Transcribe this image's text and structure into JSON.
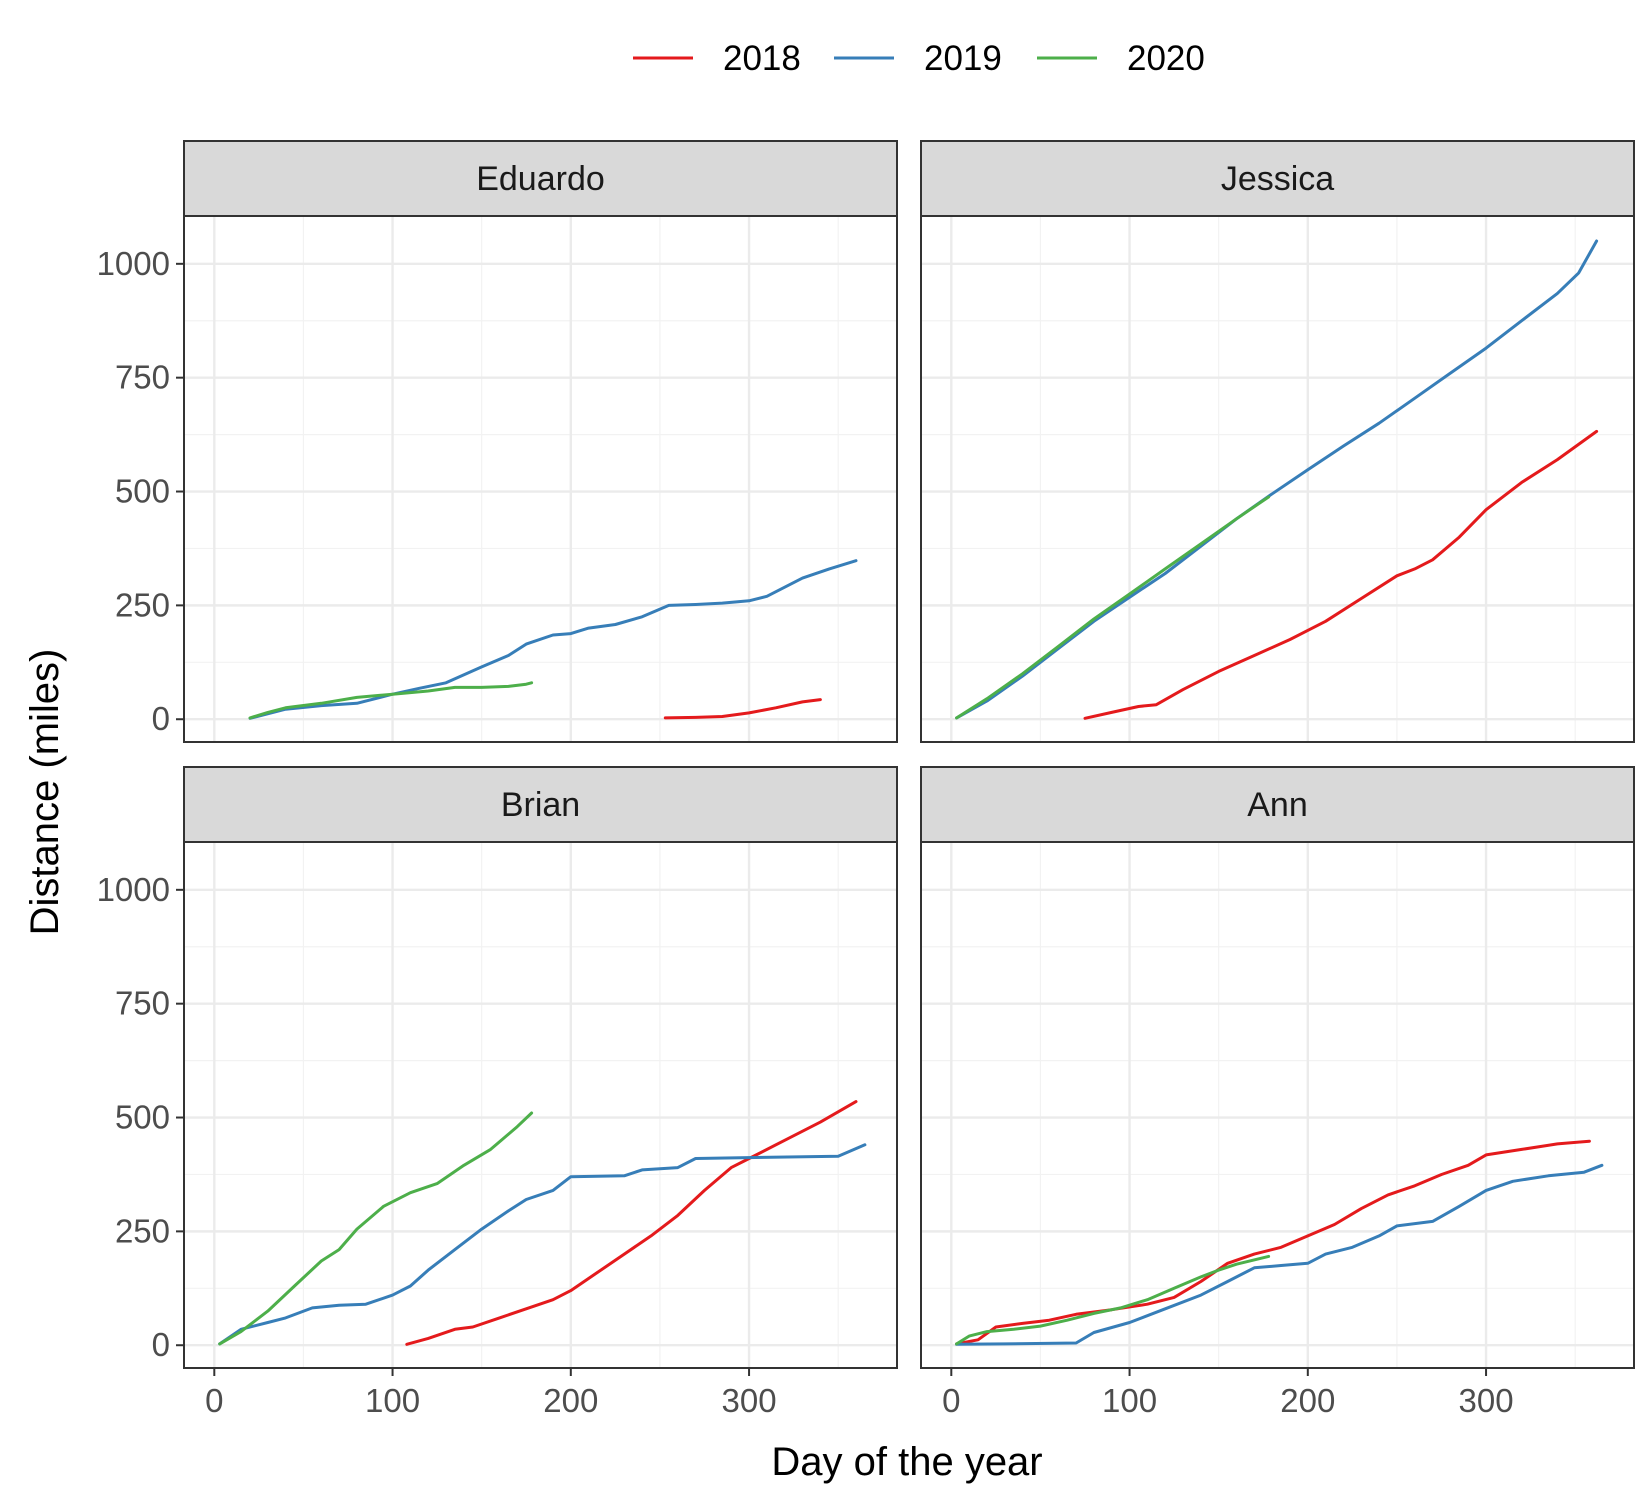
{
  "chart_data": {
    "type": "line",
    "xlabel": "Day of the year",
    "ylabel": "Distance (miles)",
    "xlim": [
      -17,
      383
    ],
    "ylim": [
      -50,
      1105
    ],
    "x_ticks": [
      0,
      100,
      200,
      300
    ],
    "y_ticks": [
      0,
      250,
      500,
      750,
      1000
    ],
    "x_minor": [
      50,
      150,
      250,
      350
    ],
    "y_minor": [
      125,
      375,
      625,
      875
    ],
    "grid": true,
    "legend_position": "top",
    "legend": [
      {
        "name": "2018",
        "color": "#E41A1C"
      },
      {
        "name": "2019",
        "color": "#377EB8"
      },
      {
        "name": "2020",
        "color": "#4DAF4A"
      }
    ],
    "layout": {
      "rows": 2,
      "cols": 2
    },
    "panels": [
      {
        "name": "Eduardo",
        "series": [
          {
            "name": "2018",
            "points": [
              [
                253,
                3
              ],
              [
                270,
                4
              ],
              [
                285,
                6
              ],
              [
                300,
                14
              ],
              [
                315,
                25
              ],
              [
                330,
                38
              ],
              [
                340,
                43
              ]
            ]
          },
          {
            "name": "2019",
            "points": [
              [
                20,
                2
              ],
              [
                40,
                22
              ],
              [
                60,
                30
              ],
              [
                80,
                35
              ],
              [
                100,
                55
              ],
              [
                115,
                68
              ],
              [
                130,
                80
              ],
              [
                150,
                115
              ],
              [
                165,
                140
              ],
              [
                175,
                165
              ],
              [
                190,
                185
              ],
              [
                200,
                188
              ],
              [
                210,
                200
              ],
              [
                225,
                208
              ],
              [
                240,
                225
              ],
              [
                255,
                250
              ],
              [
                270,
                252
              ],
              [
                285,
                255
              ],
              [
                300,
                260
              ],
              [
                310,
                270
              ],
              [
                320,
                290
              ],
              [
                330,
                310
              ],
              [
                345,
                330
              ],
              [
                360,
                348
              ]
            ]
          },
          {
            "name": "2020",
            "points": [
              [
                20,
                3
              ],
              [
                30,
                15
              ],
              [
                40,
                25
              ],
              [
                60,
                35
              ],
              [
                80,
                48
              ],
              [
                100,
                55
              ],
              [
                120,
                62
              ],
              [
                135,
                70
              ],
              [
                150,
                70
              ],
              [
                165,
                72
              ],
              [
                175,
                77
              ],
              [
                178,
                80
              ]
            ]
          }
        ]
      },
      {
        "name": "Jessica",
        "series": [
          {
            "name": "2018",
            "points": [
              [
                75,
                2
              ],
              [
                90,
                15
              ],
              [
                105,
                28
              ],
              [
                115,
                32
              ],
              [
                130,
                65
              ],
              [
                150,
                105
              ],
              [
                170,
                140
              ],
              [
                190,
                175
              ],
              [
                210,
                215
              ],
              [
                230,
                265
              ],
              [
                250,
                315
              ],
              [
                260,
                330
              ],
              [
                270,
                350
              ],
              [
                285,
                400
              ],
              [
                300,
                460
              ],
              [
                320,
                520
              ],
              [
                340,
                570
              ],
              [
                362,
                632
              ]
            ]
          },
          {
            "name": "2019",
            "points": [
              [
                3,
                3
              ],
              [
                20,
                40
              ],
              [
                40,
                95
              ],
              [
                60,
                155
              ],
              [
                80,
                215
              ],
              [
                100,
                268
              ],
              [
                120,
                320
              ],
              [
                140,
                380
              ],
              [
                160,
                440
              ],
              [
                180,
                495
              ],
              [
                200,
                548
              ],
              [
                220,
                600
              ],
              [
                240,
                650
              ],
              [
                260,
                705
              ],
              [
                280,
                760
              ],
              [
                300,
                815
              ],
              [
                320,
                875
              ],
              [
                340,
                935
              ],
              [
                352,
                980
              ],
              [
                362,
                1050
              ]
            ]
          },
          {
            "name": "2020",
            "points": [
              [
                3,
                3
              ],
              [
                20,
                45
              ],
              [
                40,
                100
              ],
              [
                60,
                160
              ],
              [
                80,
                220
              ],
              [
                100,
                275
              ],
              [
                120,
                330
              ],
              [
                140,
                385
              ],
              [
                160,
                440
              ],
              [
                175,
                480
              ],
              [
                178,
                488
              ]
            ]
          }
        ]
      },
      {
        "name": "Brian",
        "series": [
          {
            "name": "2018",
            "points": [
              [
                108,
                2
              ],
              [
                120,
                15
              ],
              [
                135,
                35
              ],
              [
                145,
                40
              ],
              [
                160,
                60
              ],
              [
                175,
                80
              ],
              [
                190,
                100
              ],
              [
                200,
                120
              ],
              [
                215,
                160
              ],
              [
                230,
                200
              ],
              [
                245,
                240
              ],
              [
                260,
                285
              ],
              [
                275,
                340
              ],
              [
                290,
                390
              ],
              [
                300,
                410
              ],
              [
                320,
                450
              ],
              [
                340,
                490
              ],
              [
                360,
                535
              ]
            ]
          },
          {
            "name": "2019",
            "points": [
              [
                3,
                3
              ],
              [
                15,
                35
              ],
              [
                30,
                50
              ],
              [
                40,
                60
              ],
              [
                55,
                82
              ],
              [
                70,
                88
              ],
              [
                85,
                90
              ],
              [
                100,
                110
              ],
              [
                110,
                130
              ],
              [
                120,
                165
              ],
              [
                135,
                210
              ],
              [
                150,
                255
              ],
              [
                165,
                295
              ],
              [
                175,
                320
              ],
              [
                190,
                340
              ],
              [
                200,
                370
              ],
              [
                230,
                372
              ],
              [
                240,
                385
              ],
              [
                260,
                390
              ],
              [
                270,
                410
              ],
              [
                350,
                415
              ],
              [
                365,
                440
              ]
            ]
          },
          {
            "name": "2020",
            "points": [
              [
                3,
                3
              ],
              [
                15,
                30
              ],
              [
                30,
                75
              ],
              [
                45,
                130
              ],
              [
                60,
                185
              ],
              [
                70,
                210
              ],
              [
                80,
                255
              ],
              [
                95,
                305
              ],
              [
                110,
                335
              ],
              [
                125,
                355
              ],
              [
                140,
                395
              ],
              [
                155,
                430
              ],
              [
                170,
                480
              ],
              [
                178,
                510
              ]
            ]
          }
        ]
      },
      {
        "name": "Ann",
        "series": [
          {
            "name": "2018",
            "points": [
              [
                3,
                3
              ],
              [
                15,
                12
              ],
              [
                25,
                40
              ],
              [
                40,
                48
              ],
              [
                55,
                55
              ],
              [
                70,
                68
              ],
              [
                90,
                78
              ],
              [
                110,
                90
              ],
              [
                125,
                105
              ],
              [
                140,
                140
              ],
              [
                155,
                180
              ],
              [
                170,
                200
              ],
              [
                185,
                215
              ],
              [
                200,
                240
              ],
              [
                215,
                265
              ],
              [
                230,
                300
              ],
              [
                245,
                330
              ],
              [
                260,
                350
              ],
              [
                275,
                375
              ],
              [
                290,
                395
              ],
              [
                300,
                418
              ],
              [
                320,
                430
              ],
              [
                340,
                442
              ],
              [
                358,
                448
              ]
            ]
          },
          {
            "name": "2019",
            "points": [
              [
                3,
                2
              ],
              [
                30,
                3
              ],
              [
                70,
                5
              ],
              [
                80,
                28
              ],
              [
                100,
                50
              ],
              [
                120,
                80
              ],
              [
                140,
                110
              ],
              [
                155,
                140
              ],
              [
                170,
                170
              ],
              [
                185,
                175
              ],
              [
                200,
                180
              ],
              [
                210,
                200
              ],
              [
                225,
                215
              ],
              [
                240,
                240
              ],
              [
                250,
                262
              ],
              [
                270,
                272
              ],
              [
                285,
                305
              ],
              [
                300,
                340
              ],
              [
                315,
                360
              ],
              [
                335,
                372
              ],
              [
                355,
                380
              ],
              [
                365,
                395
              ]
            ]
          },
          {
            "name": "2020",
            "points": [
              [
                3,
                3
              ],
              [
                10,
                20
              ],
              [
                20,
                30
              ],
              [
                35,
                35
              ],
              [
                50,
                42
              ],
              [
                65,
                55
              ],
              [
                80,
                70
              ],
              [
                95,
                82
              ],
              [
                110,
                100
              ],
              [
                125,
                125
              ],
              [
                140,
                150
              ],
              [
                150,
                165
              ],
              [
                160,
                178
              ],
              [
                178,
                195
              ]
            ]
          }
        ]
      }
    ]
  }
}
